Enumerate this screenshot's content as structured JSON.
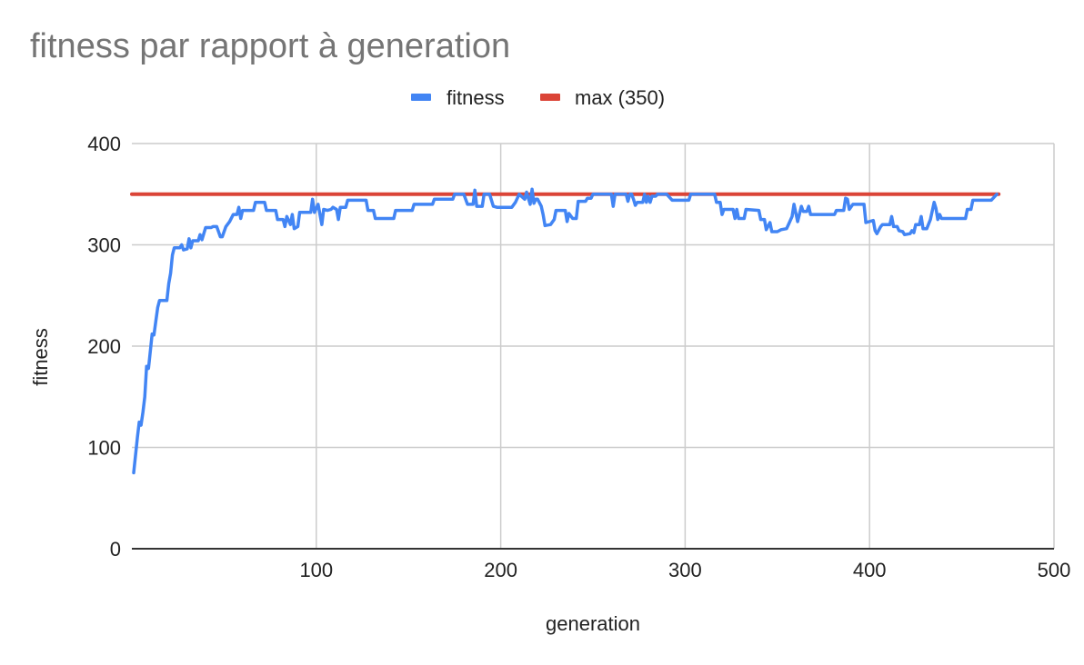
{
  "chart_data": {
    "type": "line",
    "title": "fitness par rapport à generation",
    "xlabel": "generation",
    "ylabel": "fitness",
    "xlim": [
      0,
      500
    ],
    "ylim": [
      0,
      400
    ],
    "x_ticks": [
      100,
      200,
      300,
      400,
      500
    ],
    "y_ticks": [
      0,
      100,
      200,
      300,
      400
    ],
    "grid": true,
    "legend_position": "top",
    "series": [
      {
        "name": "fitness",
        "color": "#4285f4",
        "points": [
          [
            1,
            75
          ],
          [
            3,
            110
          ],
          [
            4,
            125
          ],
          [
            5,
            122
          ],
          [
            6,
            135
          ],
          [
            7,
            150
          ],
          [
            8,
            180
          ],
          [
            9,
            178
          ],
          [
            10,
            195
          ],
          [
            11,
            212
          ],
          [
            12,
            211
          ],
          [
            13,
            225
          ],
          [
            14,
            238
          ],
          [
            15,
            245
          ],
          [
            18,
            245
          ],
          [
            19,
            245
          ],
          [
            20,
            262
          ],
          [
            21,
            272
          ],
          [
            22,
            290
          ],
          [
            23,
            297
          ],
          [
            26,
            297
          ],
          [
            27,
            300
          ],
          [
            28,
            295
          ],
          [
            30,
            296
          ],
          [
            31,
            306
          ],
          [
            32,
            297
          ],
          [
            33,
            304
          ],
          [
            36,
            304
          ],
          [
            37,
            310
          ],
          [
            38,
            305
          ],
          [
            40,
            317
          ],
          [
            43,
            317
          ],
          [
            44,
            318
          ],
          [
            46,
            318
          ],
          [
            48,
            308
          ],
          [
            49,
            308
          ],
          [
            51,
            318
          ],
          [
            53,
            323
          ],
          [
            55,
            330
          ],
          [
            57,
            330
          ],
          [
            58,
            337
          ],
          [
            59,
            326
          ],
          [
            60,
            334
          ],
          [
            66,
            334
          ],
          [
            67,
            342
          ],
          [
            72,
            342
          ],
          [
            73,
            334
          ],
          [
            78,
            334
          ],
          [
            79,
            325
          ],
          [
            82,
            325
          ],
          [
            83,
            318
          ],
          [
            84,
            328
          ],
          [
            86,
            320
          ],
          [
            87,
            330
          ],
          [
            88,
            316
          ],
          [
            90,
            318
          ],
          [
            91,
            332
          ],
          [
            97,
            332
          ],
          [
            98,
            345
          ],
          [
            99,
            332
          ],
          [
            101,
            340
          ],
          [
            103,
            320
          ],
          [
            104,
            335
          ],
          [
            106,
            334
          ],
          [
            108,
            335
          ],
          [
            109,
            337
          ],
          [
            111,
            335
          ],
          [
            112,
            325
          ],
          [
            113,
            337
          ],
          [
            116,
            337
          ],
          [
            117,
            344
          ],
          [
            127,
            344
          ],
          [
            128,
            334
          ],
          [
            131,
            334
          ],
          [
            132,
            326
          ],
          [
            142,
            326
          ],
          [
            143,
            334
          ],
          [
            152,
            334
          ],
          [
            153,
            340
          ],
          [
            163,
            340
          ],
          [
            164,
            345
          ],
          [
            174,
            345
          ],
          [
            175,
            350
          ],
          [
            180,
            350
          ],
          [
            182,
            340
          ],
          [
            185,
            340
          ],
          [
            186,
            354
          ],
          [
            187,
            338
          ],
          [
            190,
            338
          ],
          [
            191,
            350
          ],
          [
            194,
            350
          ],
          [
            196,
            338
          ],
          [
            198,
            337
          ],
          [
            206,
            337
          ],
          [
            208,
            342
          ],
          [
            210,
            350
          ],
          [
            213,
            345
          ],
          [
            214,
            352
          ],
          [
            216,
            340
          ],
          [
            217,
            355
          ],
          [
            218,
            341
          ],
          [
            219,
            345
          ],
          [
            220,
            345
          ],
          [
            222,
            338
          ],
          [
            223,
            330
          ],
          [
            224,
            319
          ],
          [
            227,
            320
          ],
          [
            229,
            325
          ],
          [
            230,
            334
          ],
          [
            235,
            334
          ],
          [
            236,
            323
          ],
          [
            237,
            331
          ],
          [
            239,
            326
          ],
          [
            241,
            326
          ],
          [
            242,
            343
          ],
          [
            246,
            343
          ],
          [
            247,
            346
          ],
          [
            249,
            346
          ],
          [
            250,
            350
          ],
          [
            260,
            350
          ],
          [
            261,
            338
          ],
          [
            262,
            350
          ],
          [
            268,
            350
          ],
          [
            269,
            343
          ],
          [
            270,
            350
          ],
          [
            271,
            350
          ],
          [
            272,
            345
          ],
          [
            273,
            339
          ],
          [
            274,
            342
          ],
          [
            277,
            342
          ],
          [
            278,
            350
          ],
          [
            279,
            342
          ],
          [
            280,
            348
          ],
          [
            281,
            342
          ],
          [
            282,
            348
          ],
          [
            284,
            348
          ],
          [
            285,
            350
          ],
          [
            290,
            350
          ],
          [
            293,
            344
          ],
          [
            302,
            344
          ],
          [
            303,
            350
          ],
          [
            316,
            350
          ],
          [
            317,
            342
          ],
          [
            319,
            342
          ],
          [
            320,
            330
          ],
          [
            321,
            335
          ],
          [
            326,
            335
          ],
          [
            327,
            326
          ],
          [
            328,
            335
          ],
          [
            329,
            326
          ],
          [
            332,
            326
          ],
          [
            333,
            335
          ],
          [
            340,
            334
          ],
          [
            341,
            325
          ],
          [
            343,
            325
          ],
          [
            344,
            315
          ],
          [
            346,
            322
          ],
          [
            347,
            313
          ],
          [
            350,
            313
          ],
          [
            352,
            315
          ],
          [
            355,
            316
          ],
          [
            356,
            320
          ],
          [
            358,
            328
          ],
          [
            359,
            340
          ],
          [
            361,
            323
          ],
          [
            363,
            338
          ],
          [
            364,
            333
          ],
          [
            366,
            333
          ],
          [
            367,
            338
          ],
          [
            368,
            330
          ],
          [
            381,
            330
          ],
          [
            382,
            334
          ],
          [
            386,
            334
          ],
          [
            387,
            346
          ],
          [
            388,
            345
          ],
          [
            389,
            335
          ],
          [
            391,
            340
          ],
          [
            397,
            340
          ],
          [
            398,
            322
          ],
          [
            402,
            324
          ],
          [
            403,
            314
          ],
          [
            404,
            311
          ],
          [
            406,
            318
          ],
          [
            407,
            320
          ],
          [
            411,
            320
          ],
          [
            412,
            328
          ],
          [
            413,
            318
          ],
          [
            415,
            318
          ],
          [
            416,
            314
          ],
          [
            418,
            313
          ],
          [
            419,
            310
          ],
          [
            422,
            311
          ],
          [
            423,
            314
          ],
          [
            424,
            312
          ],
          [
            425,
            320
          ],
          [
            427,
            320
          ],
          [
            428,
            328
          ],
          [
            429,
            316
          ],
          [
            431,
            316
          ],
          [
            433,
            325
          ],
          [
            435,
            342
          ],
          [
            436,
            336
          ],
          [
            437,
            325
          ],
          [
            438,
            330
          ],
          [
            439,
            326
          ],
          [
            452,
            326
          ],
          [
            453,
            335
          ],
          [
            455,
            335
          ],
          [
            456,
            344
          ],
          [
            466,
            344
          ],
          [
            467,
            346
          ],
          [
            469,
            350
          ]
        ]
      },
      {
        "name": "max (350)",
        "color": "#db4437",
        "points": [
          [
            0,
            350
          ],
          [
            470,
            350
          ]
        ]
      }
    ]
  }
}
